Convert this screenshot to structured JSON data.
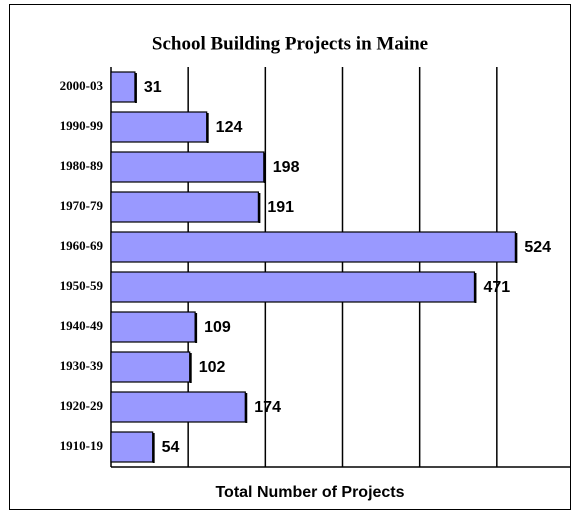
{
  "chart_data": {
    "type": "hbar",
    "title": "School Building Projects in Maine",
    "categories": [
      "2000-03",
      "1990-99",
      "1980-89",
      "1970-79",
      "1960-69",
      "1950-59",
      "1940-49",
      "1930-39",
      "1920-29",
      "1910-19"
    ],
    "values": [
      31,
      124,
      198,
      191,
      524,
      471,
      109,
      102,
      174,
      54
    ],
    "color": "#9999ff",
    "xlabel": "Total Number of Projects",
    "xlim": [
      0,
      600
    ],
    "xticks": [
      0,
      100,
      200,
      300,
      400,
      500,
      600
    ],
    "grid": true
  }
}
